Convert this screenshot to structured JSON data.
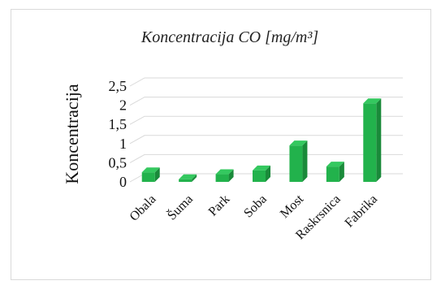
{
  "chart_data": {
    "type": "bar",
    "title": "Koncentracija CO [mg/m³]",
    "xlabel": "",
    "ylabel": "Koncentracija",
    "categories": [
      "Obala",
      "Šuma",
      "Park",
      "Soba",
      "Most",
      "Raskrsnica",
      "Fabrika"
    ],
    "values": [
      0.25,
      0.07,
      0.2,
      0.3,
      0.95,
      0.4,
      2.05
    ],
    "y_ticks": [
      "0",
      "0,5",
      "1",
      "1,5",
      "2",
      "2,5"
    ],
    "ylim": [
      0,
      2.5
    ],
    "grid": true,
    "style": "3d-column",
    "colors": {
      "bar_front": "#22b24c",
      "bar_side": "#1a8a3a",
      "bar_top": "#34c85f",
      "grid": "#d9d9d9"
    }
  }
}
